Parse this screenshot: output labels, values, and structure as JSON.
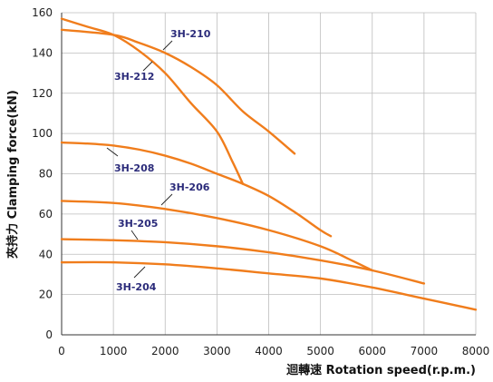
{
  "chart_data": {
    "type": "line",
    "title": "",
    "xlabel": "迴轉速 Rotation speed(r.p.m.)",
    "ylabel": "夾持力 Clamping force(kN)",
    "xlim": [
      0,
      8000
    ],
    "ylim": [
      0,
      160
    ],
    "xticks": [
      0,
      1000,
      2000,
      3000,
      4000,
      5000,
      6000,
      7000,
      8000
    ],
    "yticks": [
      0,
      20,
      40,
      60,
      80,
      100,
      120,
      140,
      160
    ],
    "grid": true,
    "line_color": "#f07d1c",
    "label_color": "#2b2b7a",
    "series": [
      {
        "name": "3H-210",
        "x": [
          0,
          1000,
          1500,
          2000,
          2500,
          3000,
          3500,
          4000,
          4500
        ],
        "y": [
          151.5,
          149,
          145,
          140,
          133,
          124,
          111,
          101,
          90
        ]
      },
      {
        "name": "3H-212",
        "x": [
          0,
          500,
          1000,
          1500,
          2000,
          2500,
          3000,
          3300,
          3500
        ],
        "y": [
          157,
          153,
          149,
          141,
          130,
          115,
          101,
          86,
          75
        ]
      },
      {
        "name": "3H-208",
        "x": [
          0,
          500,
          1000,
          1500,
          2000,
          2500,
          3000,
          3500,
          4000,
          4500,
          5000,
          5200
        ],
        "y": [
          95.5,
          95,
          94,
          92,
          89,
          85,
          80,
          75,
          69,
          61,
          52,
          49
        ]
      },
      {
        "name": "3H-206",
        "x": [
          0,
          1000,
          2000,
          3000,
          4000,
          5000,
          5600,
          6000
        ],
        "y": [
          66.5,
          65.5,
          62.5,
          58,
          52,
          44,
          37,
          32
        ]
      },
      {
        "name": "3H-205",
        "x": [
          0,
          1000,
          2000,
          3000,
          4000,
          5000,
          6000,
          7000
        ],
        "y": [
          47.5,
          47,
          46,
          44,
          41,
          37,
          32,
          25.5
        ]
      },
      {
        "name": "3H-204",
        "x": [
          0,
          1000,
          2000,
          3000,
          4000,
          5000,
          6000,
          7000,
          8000
        ],
        "y": [
          36,
          36,
          35,
          33,
          30.5,
          28,
          23.5,
          18,
          12.5
        ]
      }
    ]
  }
}
